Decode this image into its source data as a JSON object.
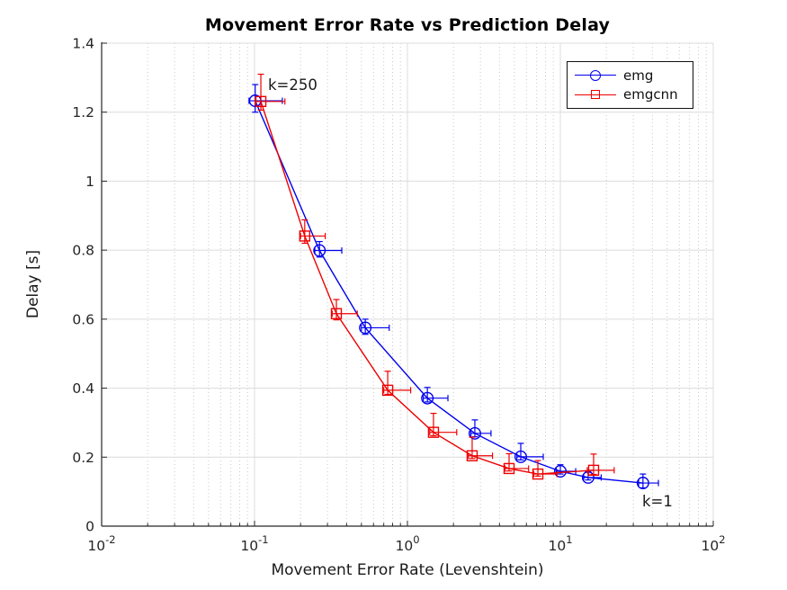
{
  "figure": {
    "title": "Movement Error Rate vs Prediction Delay",
    "xlabel": "Movement Error Rate (Levenshtein)",
    "ylabel": "Delay [s]"
  },
  "legend": {
    "position": "upper-right",
    "items": [
      {
        "label": "emg",
        "color": "#0000ee",
        "marker": "circle"
      },
      {
        "label": "emgcnn",
        "color": "#ee0000",
        "marker": "square"
      }
    ]
  },
  "chart_data": {
    "type": "line",
    "title": "Movement Error Rate vs Prediction Delay",
    "xlabel": "Movement Error Rate (Levenshtein)",
    "ylabel": "Delay [s]",
    "x_scale": "log",
    "y_scale": "linear",
    "xlim": [
      0.01,
      100
    ],
    "ylim": [
      0,
      1.4
    ],
    "grid": true,
    "legend_position": "upper right",
    "x_tick_base": "10",
    "x_major_exponents": [
      -2,
      -1,
      0,
      1,
      2
    ],
    "x_minor_mantissas": [
      2,
      3,
      4,
      5,
      6,
      7,
      8,
      9
    ],
    "y_ticks": [
      {
        "v": 0,
        "label": "0"
      },
      {
        "v": 0.2,
        "label": "0.2"
      },
      {
        "v": 0.4,
        "label": "0.4"
      },
      {
        "v": 0.6,
        "label": "0.6"
      },
      {
        "v": 0.8,
        "label": "0.8"
      },
      {
        "v": 1,
        "label": "1"
      },
      {
        "v": 1.2,
        "label": "1.2"
      },
      {
        "v": 1.4,
        "label": "1.4"
      }
    ],
    "colors": {
      "grid_major": "#dcdcdc",
      "grid_minor": "#c9c9c9",
      "axis": "#262626",
      "text": "#262626"
    },
    "series": [
      {
        "name": "emg",
        "color": "#0000ee",
        "marker": "circle",
        "points": [
          {
            "x": 0.101,
            "y": 1.233,
            "xlo": 0.092,
            "xhi": 0.152,
            "ylo": 1.2,
            "yhi": 1.28
          },
          {
            "x": 0.266,
            "y": 0.799,
            "xlo": 0.248,
            "xhi": 0.372,
            "ylo": 0.78,
            "yhi": 0.825
          },
          {
            "x": 0.53,
            "y": 0.575,
            "xlo": 0.5,
            "xhi": 0.76,
            "ylo": 0.556,
            "yhi": 0.6
          },
          {
            "x": 1.35,
            "y": 0.371,
            "xlo": 1.27,
            "xhi": 1.84,
            "ylo": 0.36,
            "yhi": 0.402
          },
          {
            "x": 2.76,
            "y": 0.269,
            "xlo": 2.6,
            "xhi": 3.52,
            "ylo": 0.259,
            "yhi": 0.308
          },
          {
            "x": 5.51,
            "y": 0.201,
            "xlo": 5.2,
            "xhi": 7.73,
            "ylo": 0.192,
            "yhi": 0.24
          },
          {
            "x": 10.0,
            "y": 0.159,
            "xlo": 9.4,
            "xhi": 12.6,
            "ylo": 0.151,
            "yhi": 0.178
          },
          {
            "x": 15.2,
            "y": 0.141,
            "xlo": 14.2,
            "xhi": 18.5,
            "ylo": 0.134,
            "yhi": 0.158
          },
          {
            "x": 34.7,
            "y": 0.125,
            "xlo": 32.5,
            "xhi": 43.8,
            "ylo": 0.111,
            "yhi": 0.151
          }
        ]
      },
      {
        "name": "emgcnn",
        "color": "#ee0000",
        "marker": "square",
        "points": [
          {
            "x": 0.11,
            "y": 1.231,
            "xlo": 0.101,
            "xhi": 0.158,
            "ylo": 1.206,
            "yhi": 1.31
          },
          {
            "x": 0.213,
            "y": 0.841,
            "xlo": 0.2,
            "xhi": 0.29,
            "ylo": 0.82,
            "yhi": 0.888
          },
          {
            "x": 0.343,
            "y": 0.616,
            "xlo": 0.322,
            "xhi": 0.47,
            "ylo": 0.598,
            "yhi": 0.657
          },
          {
            "x": 0.743,
            "y": 0.394,
            "xlo": 0.7,
            "xhi": 1.05,
            "ylo": 0.382,
            "yhi": 0.449
          },
          {
            "x": 1.48,
            "y": 0.272,
            "xlo": 1.4,
            "xhi": 2.1,
            "ylo": 0.262,
            "yhi": 0.327
          },
          {
            "x": 2.65,
            "y": 0.204,
            "xlo": 2.5,
            "xhi": 3.6,
            "ylo": 0.196,
            "yhi": 0.258
          },
          {
            "x": 4.62,
            "y": 0.167,
            "xlo": 4.35,
            "xhi": 6.2,
            "ylo": 0.16,
            "yhi": 0.21
          },
          {
            "x": 7.13,
            "y": 0.151,
            "xlo": 6.7,
            "xhi": 9.5,
            "ylo": 0.145,
            "yhi": 0.19
          },
          {
            "x": 16.5,
            "y": 0.162,
            "xlo": 15.0,
            "xhi": 22.5,
            "ylo": 0.15,
            "yhi": 0.209
          }
        ]
      }
    ],
    "annotations": [
      {
        "text": "k=250",
        "x": 0.1225,
        "y": 1.264,
        "anchor": "start"
      },
      {
        "text": "k=1",
        "x": 34.3,
        "y": 0.057,
        "anchor": "start"
      }
    ]
  }
}
